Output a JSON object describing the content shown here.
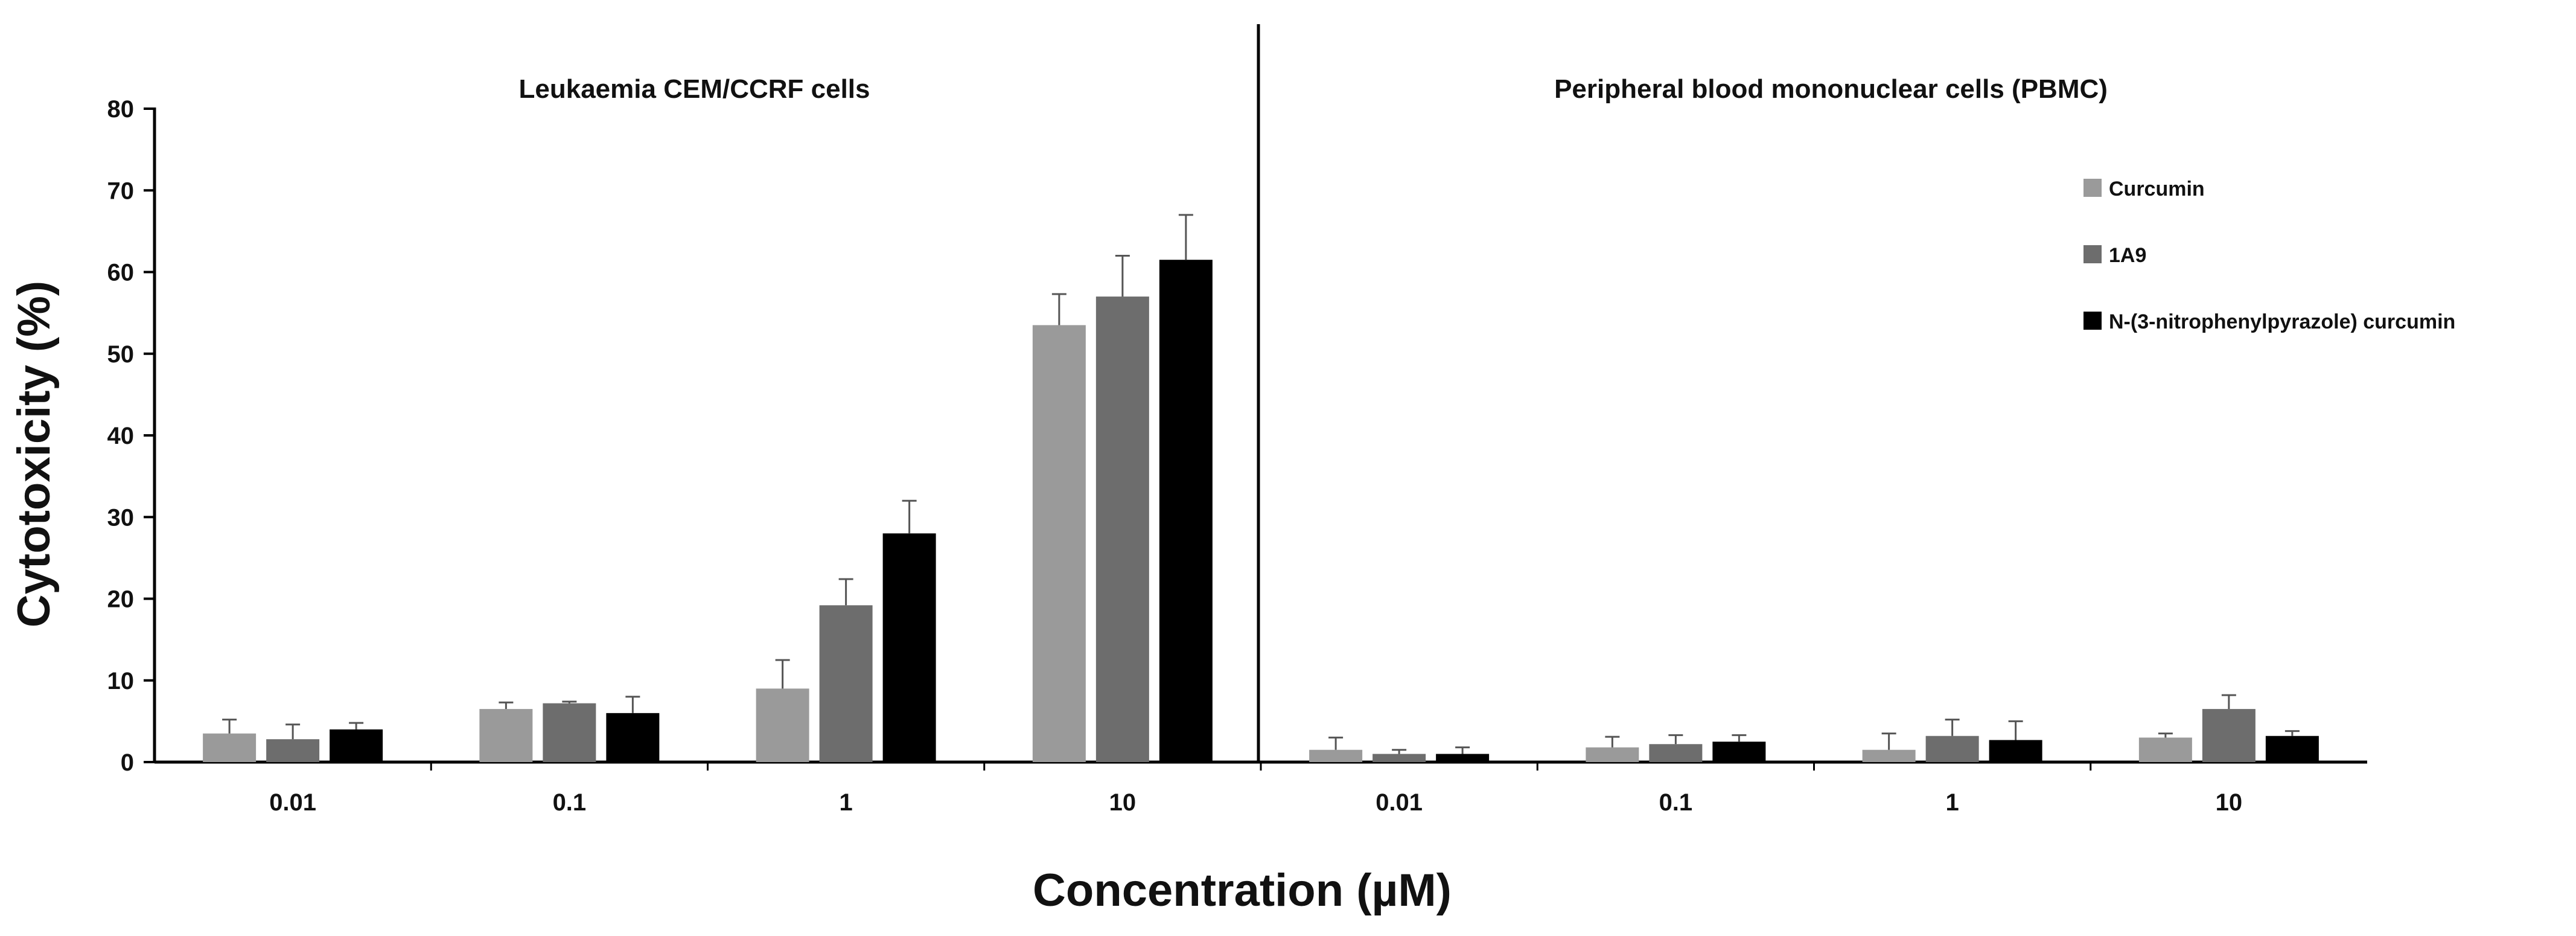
{
  "chart_data": {
    "type": "bar",
    "ylabel": "Cytotoxicity (%)",
    "xlabel": "Concentration (µM)",
    "ylim": [
      0,
      80
    ],
    "yticks": [
      0,
      10,
      20,
      30,
      40,
      50,
      60,
      70,
      80
    ],
    "grid": false,
    "legend_position": "top-right",
    "series_meta": [
      {
        "name": "Curcumin",
        "color": "#9a9a9a"
      },
      {
        "name": "1A9",
        "color": "#6d6d6d"
      },
      {
        "name": "N-(3-nitrophenylpyrazole) curcumin",
        "color": "#000000"
      }
    ],
    "panels": [
      {
        "title": "Leukaemia CEM/CCRF cells",
        "categories": [
          "0.01",
          "0.1",
          "1",
          "10"
        ],
        "series": [
          {
            "name": "Curcumin",
            "values": [
              3.5,
              6.5,
              9.0,
              53.5
            ],
            "errors": [
              1.7,
              0.8,
              3.5,
              3.8
            ]
          },
          {
            "name": "1A9",
            "values": [
              2.8,
              7.2,
              19.2,
              57.0
            ],
            "errors": [
              1.8,
              0.2,
              3.2,
              5.0
            ]
          },
          {
            "name": "N-(3-nitrophenylpyrazole) curcumin",
            "values": [
              4.0,
              6.0,
              28.0,
              61.5
            ],
            "errors": [
              0.8,
              2.0,
              4.0,
              5.5
            ]
          }
        ]
      },
      {
        "title": "Peripheral blood mononuclear cells (PBMC)",
        "categories": [
          "0.01",
          "0.1",
          "1",
          "10"
        ],
        "series": [
          {
            "name": "Curcumin",
            "values": [
              1.5,
              1.8,
              1.5,
              3.0
            ],
            "errors": [
              1.5,
              1.3,
              2.0,
              0.5
            ]
          },
          {
            "name": "1A9",
            "values": [
              1.0,
              2.2,
              3.2,
              6.5
            ],
            "errors": [
              0.5,
              1.1,
              2.0,
              1.7
            ]
          },
          {
            "name": "N-(3-nitrophenylpyrazole) curcumin",
            "values": [
              1.0,
              2.5,
              2.7,
              3.2
            ],
            "errors": [
              0.8,
              0.8,
              2.3,
              0.6
            ]
          }
        ]
      }
    ]
  }
}
